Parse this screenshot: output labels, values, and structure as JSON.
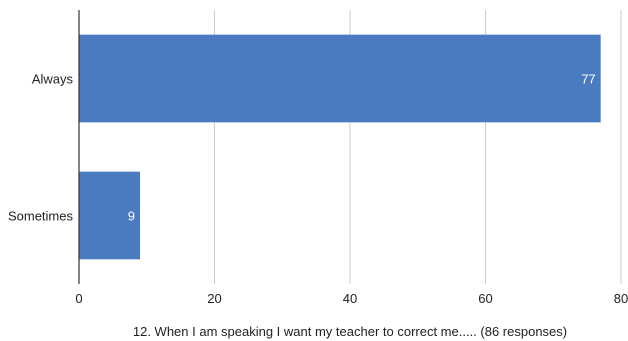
{
  "chart_data": {
    "type": "bar",
    "orientation": "horizontal",
    "categories": [
      "Always",
      "Sometimes"
    ],
    "values": [
      77,
      9
    ],
    "data_labels": [
      "77",
      "9"
    ],
    "xlabel": "12. When I am speaking I want my teacher to correct me..... (86 responses)",
    "ylabel": "",
    "xlim": [
      0,
      80
    ],
    "xticks": [
      0,
      20,
      40,
      60,
      80
    ],
    "grid": true,
    "legend": "none",
    "bar_color": "#4a7ac0"
  }
}
